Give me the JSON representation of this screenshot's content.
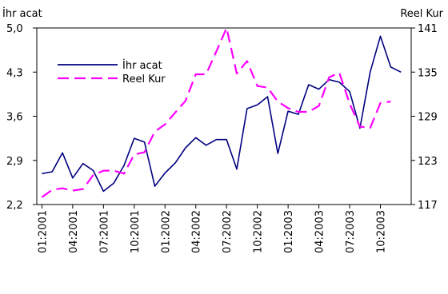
{
  "chart_data": {
    "type": "line",
    "title": "",
    "y_left_label": "İhr acat",
    "y_right_label": "Reel Kur",
    "y_left_range": [
      2.2,
      5.0
    ],
    "y_right_range": [
      117,
      141
    ],
    "y_left_ticks": [
      "2,2",
      "2,9",
      "3,6",
      "4,3",
      "5,0"
    ],
    "y_right_ticks": [
      "117",
      "123",
      "129",
      "135",
      "141"
    ],
    "x_tick_labels": [
      "01:2001",
      "04:2001",
      "07:2001",
      "10:2001",
      "01:2002",
      "04:2002",
      "07:2002",
      "10:2002",
      "01:2003",
      "04:2003",
      "07:2003",
      "10:2003"
    ],
    "x_tick_positions": [
      0,
      3,
      6,
      9,
      12,
      15,
      18,
      21,
      24,
      27,
      30,
      33
    ],
    "grid": false,
    "legend_position": "top-left",
    "series": [
      {
        "name": "İhr acat",
        "axis": "left",
        "color": "#000080",
        "dash": "solid",
        "x": [
          0,
          1,
          2,
          3,
          4,
          5,
          6,
          7,
          8,
          9,
          10,
          11,
          12,
          13,
          14,
          15,
          16,
          17,
          18,
          19,
          20,
          21,
          22,
          23,
          24,
          25,
          26,
          27,
          28,
          29,
          30,
          31,
          32,
          33,
          34,
          35
        ],
        "values": [
          2.69,
          2.72,
          3.02,
          2.62,
          2.85,
          2.74,
          2.41,
          2.54,
          2.82,
          3.25,
          3.19,
          2.49,
          2.7,
          2.86,
          3.1,
          3.26,
          3.14,
          3.23,
          3.23,
          2.76,
          3.72,
          3.78,
          3.91,
          3.01,
          3.68,
          3.63,
          4.1,
          4.03,
          4.18,
          4.14,
          3.99,
          3.41,
          4.3,
          4.87,
          4.38,
          4.3
        ]
      },
      {
        "name": "Reel Kur",
        "axis": "right",
        "color": "#ff00ff",
        "dash": "dashed",
        "x": [
          0,
          1,
          2,
          3,
          4,
          5,
          6,
          7,
          8,
          9,
          10,
          11,
          12,
          13,
          14,
          15,
          16,
          17,
          18,
          19,
          20,
          21,
          22,
          23,
          24,
          25,
          26,
          27,
          28,
          29,
          30,
          31,
          32,
          33,
          34
        ],
        "values": [
          118.0,
          119.0,
          119.2,
          118.9,
          119.1,
          121.0,
          121.6,
          121.6,
          121.2,
          123.8,
          124.1,
          126.9,
          127.9,
          129.5,
          131.1,
          134.7,
          134.7,
          137.8,
          141.0,
          134.8,
          136.5,
          133.1,
          132.9,
          131.0,
          130.1,
          129.6,
          129.6,
          130.4,
          134.3,
          134.9,
          130.7,
          127.6,
          127.4,
          130.8,
          131.0
        ]
      }
    ]
  }
}
